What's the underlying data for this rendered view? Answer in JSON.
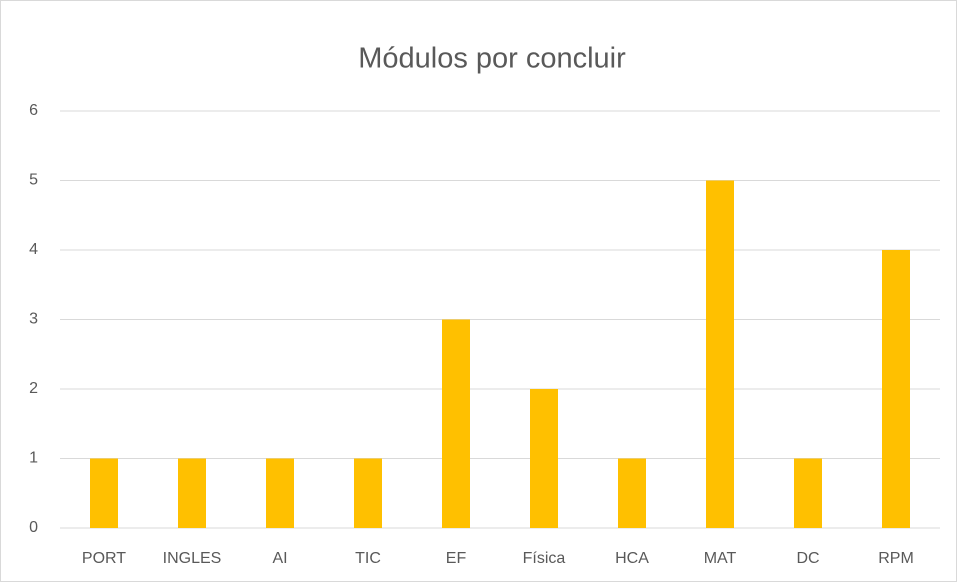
{
  "chart_data": {
    "type": "bar",
    "title": "Módulos por concluir",
    "categories": [
      "PORT",
      "INGLES",
      "AI",
      "TIC",
      "EF",
      "Física",
      "HCA",
      "MAT",
      "DC",
      "RPM"
    ],
    "values": [
      1,
      1,
      1,
      1,
      3,
      2,
      1,
      5,
      1,
      4
    ],
    "color": "#ffc000",
    "ylim": [
      0,
      6
    ],
    "yticks": [
      0,
      1,
      2,
      3,
      4,
      5,
      6
    ],
    "grid": true
  }
}
